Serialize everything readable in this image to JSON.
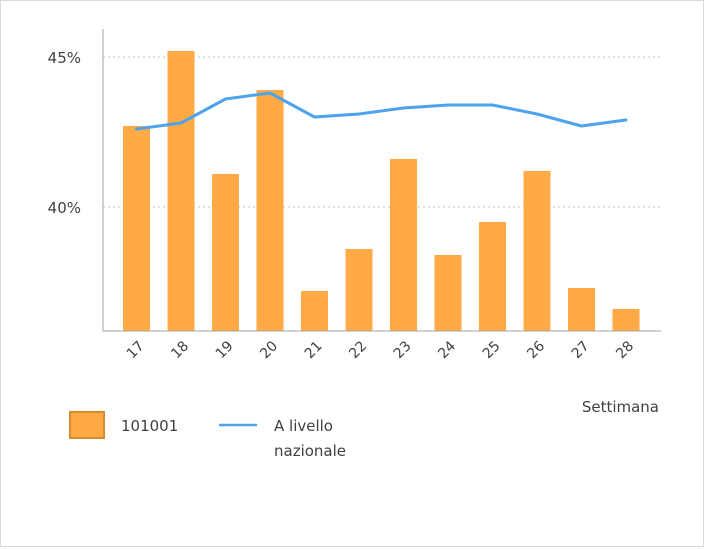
{
  "chart_data": {
    "type": "bar",
    "title": "",
    "xlabel": "Settimana",
    "ylabel": "",
    "categories": [
      "17",
      "18",
      "19",
      "20",
      "21",
      "22",
      "23",
      "24",
      "25",
      "26",
      "27",
      "28"
    ],
    "series": [
      {
        "name": "101001",
        "kind": "bar",
        "color": "#FFAA45",
        "values": [
          42.7,
          45.2,
          41.1,
          43.9,
          37.2,
          38.6,
          41.6,
          38.4,
          39.5,
          41.2,
          37.3,
          36.6
        ]
      },
      {
        "name": "A livello nazionale",
        "kind": "line",
        "color": "#4DA3EC",
        "values": [
          42.6,
          42.8,
          43.6,
          43.8,
          43.0,
          43.1,
          43.3,
          43.4,
          43.4,
          43.1,
          42.7,
          42.9
        ]
      }
    ],
    "yticks": [
      "40%",
      "45%"
    ],
    "ytick_values": [
      40,
      45
    ],
    "ylim": [
      35.9,
      46.7
    ],
    "grid": true,
    "legend_position": "bottom-left"
  },
  "legend": {
    "bar_label": "101001",
    "line_label_1": "A livello",
    "line_label_2": "nazionale"
  },
  "axis": {
    "x_title": "Settimana"
  }
}
